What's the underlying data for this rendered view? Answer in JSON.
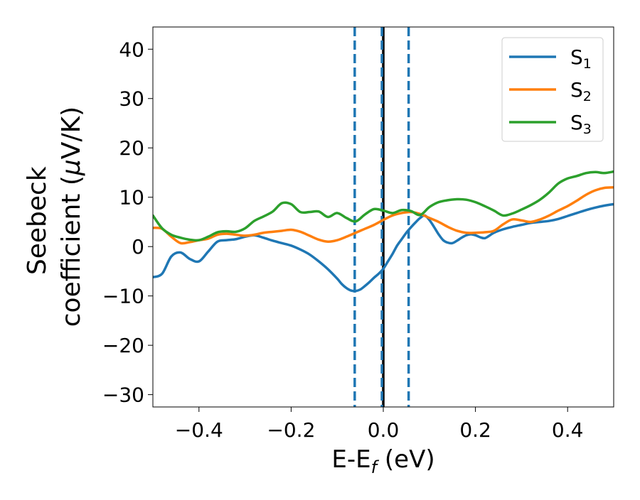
{
  "chart_data": {
    "type": "line",
    "xlabel": {
      "main": "E-E",
      "sub": "f",
      "suffix": " (eV)"
    },
    "ylabel": {
      "line1": "Seebeck",
      "line2": "coefficient  (",
      "mu": "μ",
      "unit": "V/K)"
    },
    "xlim": [
      -0.5,
      0.5
    ],
    "ylim": [
      -32.5,
      44.5
    ],
    "xticks": [
      -0.4,
      -0.2,
      0.0,
      0.2,
      0.4
    ],
    "xtick_labels": [
      "−0.4",
      "−0.2",
      "0.0",
      "0.2",
      "0.4"
    ],
    "yticks": [
      -30,
      -20,
      -10,
      0,
      10,
      20,
      30,
      40
    ],
    "ytick_labels": [
      "−30",
      "−20",
      "−10",
      "0",
      "10",
      "20",
      "30",
      "40"
    ],
    "grid": false,
    "legend_position": "top-right",
    "series": [
      {
        "name": "S",
        "subscript": "1",
        "color": "#1f77b4",
        "x": [
          -0.5,
          -0.48,
          -0.46,
          -0.44,
          -0.42,
          -0.4,
          -0.38,
          -0.36,
          -0.34,
          -0.32,
          -0.3,
          -0.28,
          -0.26,
          -0.24,
          -0.22,
          -0.2,
          -0.18,
          -0.16,
          -0.14,
          -0.12,
          -0.1,
          -0.09,
          -0.08,
          -0.07,
          -0.06,
          -0.05,
          -0.04,
          -0.03,
          -0.02,
          -0.01,
          0.0,
          0.01,
          0.02,
          0.03,
          0.04,
          0.05,
          0.06,
          0.07,
          0.08,
          0.09,
          0.1,
          0.11,
          0.12,
          0.13,
          0.14,
          0.15,
          0.16,
          0.17,
          0.18,
          0.19,
          0.2,
          0.21,
          0.22,
          0.23,
          0.24,
          0.26,
          0.28,
          0.3,
          0.32,
          0.34,
          0.36,
          0.38,
          0.4,
          0.42,
          0.44,
          0.46,
          0.48,
          0.5
        ],
        "y": [
          -6.2,
          -5.5,
          -2.0,
          -1.2,
          -2.5,
          -3.0,
          -1.0,
          1.0,
          1.3,
          1.5,
          2.0,
          2.3,
          1.8,
          1.2,
          0.7,
          0.2,
          -0.6,
          -1.6,
          -3.0,
          -4.6,
          -6.5,
          -7.6,
          -8.4,
          -8.9,
          -9.0,
          -8.7,
          -8.0,
          -7.2,
          -6.3,
          -5.5,
          -4.5,
          -3.0,
          -1.5,
          0.2,
          1.5,
          2.8,
          3.9,
          4.9,
          5.8,
          6.3,
          5.4,
          4.0,
          2.5,
          1.3,
          0.8,
          0.7,
          1.2,
          1.8,
          2.3,
          2.5,
          2.3,
          1.9,
          1.7,
          2.2,
          2.8,
          3.5,
          4.0,
          4.4,
          4.8,
          5.0,
          5.2,
          5.6,
          6.2,
          6.8,
          7.4,
          7.9,
          8.3,
          8.6
        ]
      },
      {
        "name": "S",
        "subscript": "2",
        "color": "#ff7f0e",
        "x": [
          -0.5,
          -0.48,
          -0.46,
          -0.44,
          -0.42,
          -0.4,
          -0.38,
          -0.36,
          -0.34,
          -0.32,
          -0.3,
          -0.28,
          -0.26,
          -0.24,
          -0.22,
          -0.2,
          -0.18,
          -0.16,
          -0.14,
          -0.12,
          -0.1,
          -0.08,
          -0.06,
          -0.04,
          -0.02,
          0.0,
          0.02,
          0.04,
          0.06,
          0.08,
          0.1,
          0.12,
          0.14,
          0.16,
          0.18,
          0.2,
          0.22,
          0.24,
          0.26,
          0.28,
          0.3,
          0.32,
          0.34,
          0.36,
          0.38,
          0.4,
          0.42,
          0.44,
          0.46,
          0.48,
          0.5
        ],
        "y": [
          3.8,
          3.6,
          2.0,
          0.7,
          0.9,
          1.3,
          1.6,
          2.4,
          2.6,
          2.4,
          2.2,
          2.4,
          2.8,
          3.0,
          3.2,
          3.4,
          3.0,
          2.2,
          1.4,
          1.0,
          1.3,
          2.0,
          2.8,
          3.6,
          4.4,
          5.4,
          6.3,
          6.8,
          7.0,
          6.6,
          5.8,
          5.0,
          4.0,
          3.2,
          2.8,
          2.8,
          2.9,
          3.2,
          4.5,
          5.5,
          5.3,
          5.0,
          5.5,
          6.3,
          7.3,
          8.2,
          9.3,
          10.5,
          11.4,
          11.9,
          12.0
        ]
      },
      {
        "name": "S",
        "subscript": "3",
        "color": "#2ca02c",
        "x": [
          -0.5,
          -0.48,
          -0.46,
          -0.44,
          -0.42,
          -0.4,
          -0.38,
          -0.36,
          -0.34,
          -0.32,
          -0.3,
          -0.28,
          -0.26,
          -0.24,
          -0.22,
          -0.2,
          -0.18,
          -0.16,
          -0.14,
          -0.12,
          -0.1,
          -0.08,
          -0.06,
          -0.04,
          -0.02,
          0.0,
          0.02,
          0.04,
          0.06,
          0.08,
          0.1,
          0.12,
          0.14,
          0.16,
          0.18,
          0.2,
          0.22,
          0.24,
          0.26,
          0.28,
          0.3,
          0.32,
          0.34,
          0.36,
          0.38,
          0.4,
          0.42,
          0.44,
          0.46,
          0.48,
          0.5
        ],
        "y": [
          6.3,
          3.7,
          2.4,
          1.8,
          1.4,
          1.3,
          2.0,
          2.9,
          3.1,
          3.0,
          3.7,
          5.2,
          6.1,
          7.1,
          8.8,
          8.6,
          7.0,
          7.0,
          7.1,
          6.0,
          6.8,
          5.8,
          5.1,
          6.5,
          7.6,
          7.3,
          6.8,
          7.4,
          7.2,
          6.4,
          8.0,
          9.0,
          9.4,
          9.6,
          9.5,
          9.0,
          8.2,
          7.3,
          6.3,
          6.7,
          7.5,
          8.4,
          9.5,
          11.0,
          12.8,
          13.8,
          14.3,
          14.9,
          15.1,
          14.9,
          15.2
        ]
      }
    ],
    "vlines": [
      {
        "x": -0.062,
        "style": "dashed",
        "color": "#1f77b4"
      },
      {
        "x": 0.0,
        "style": "solid",
        "color": "#000000"
      },
      {
        "x": -0.003,
        "style": "dashed",
        "color": "#1f77b4"
      },
      {
        "x": 0.055,
        "style": "dashed",
        "color": "#1f77b4"
      }
    ]
  }
}
